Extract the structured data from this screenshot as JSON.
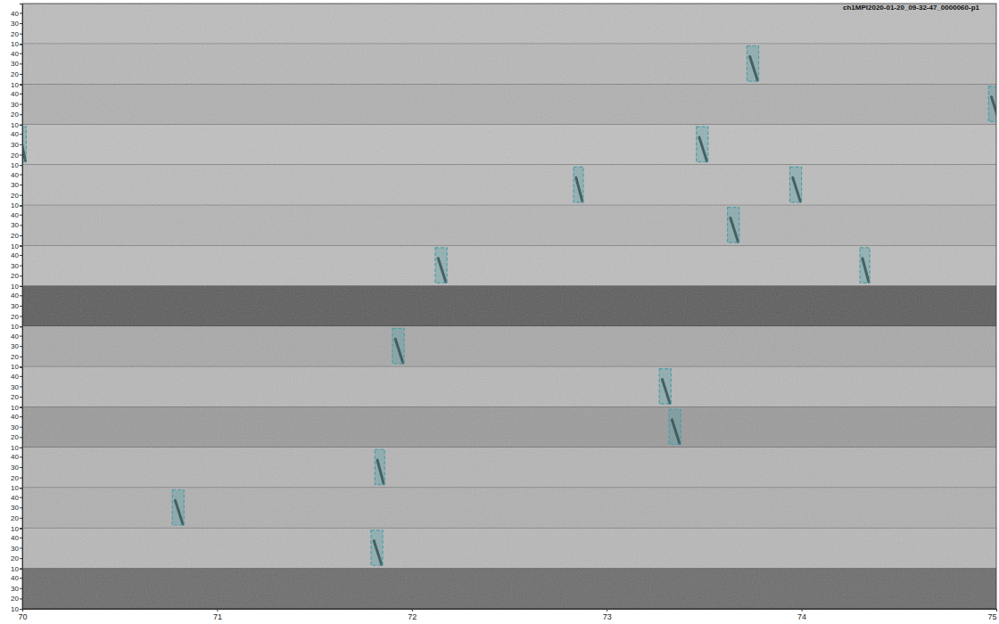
{
  "chart_data": {
    "type": "spectrogram",
    "title": "ch1MPI2020-01-20_09-32-47_0000060-p1",
    "xlim": [
      70,
      75
    ],
    "xticks": [
      70,
      71,
      72,
      73,
      74,
      75
    ],
    "ylim": [
      10,
      49
    ],
    "yticks": [
      10,
      20,
      30,
      40
    ],
    "color": "#4f9ea6",
    "colors": [
      "#bdbdbd",
      "#b8b8b8",
      "#b0b0b0",
      "#c0c0c0",
      "#bcbcbc",
      "#b5b5b5",
      "#bdbdbd",
      "#5a5a5a",
      "#a8a8a8",
      "#b8b8b8",
      "#9a9a9a",
      "#b5b5b5",
      "#b0b0b0",
      "#b8b8b8",
      "#6a6a6a"
    ],
    "detections": [
      {
        "panel": 1,
        "start": 73.72,
        "end": 73.78,
        "low": 13,
        "high": 47
      },
      {
        "panel": 2,
        "start": 74.96,
        "end": 75.02,
        "low": 13,
        "high": 47
      },
      {
        "panel": 3,
        "start": 69.98,
        "end": 70.02,
        "low": 13,
        "high": 47
      },
      {
        "panel": 3,
        "start": 73.46,
        "end": 73.52,
        "low": 13,
        "high": 47
      },
      {
        "panel": 4,
        "start": 72.83,
        "end": 72.88,
        "low": 13,
        "high": 47
      },
      {
        "panel": 4,
        "start": 73.94,
        "end": 74.0,
        "low": 13,
        "high": 47
      },
      {
        "panel": 5,
        "start": 73.62,
        "end": 73.68,
        "low": 13,
        "high": 47
      },
      {
        "panel": 6,
        "start": 72.12,
        "end": 72.18,
        "low": 13,
        "high": 47
      },
      {
        "panel": 6,
        "start": 74.3,
        "end": 74.35,
        "low": 13,
        "high": 47
      },
      {
        "panel": 8,
        "start": 71.9,
        "end": 71.96,
        "low": 13,
        "high": 47
      },
      {
        "panel": 9,
        "start": 73.27,
        "end": 73.33,
        "low": 13,
        "high": 47
      },
      {
        "panel": 10,
        "start": 73.32,
        "end": 73.38,
        "low": 13,
        "high": 47
      },
      {
        "panel": 11,
        "start": 71.81,
        "end": 71.86,
        "low": 13,
        "high": 47
      },
      {
        "panel": 12,
        "start": 70.77,
        "end": 70.83,
        "low": 13,
        "high": 47
      },
      {
        "panel": 13,
        "start": 71.79,
        "end": 71.85,
        "low": 13,
        "high": 47
      }
    ]
  }
}
